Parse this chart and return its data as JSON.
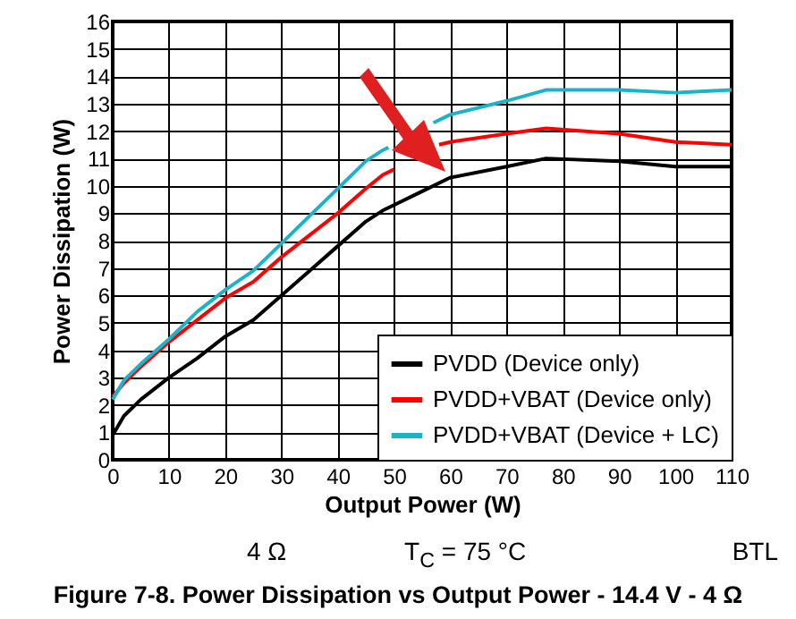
{
  "chart_data": {
    "type": "line",
    "title": "Figure 7-8. Power Dissipation vs Output Power - 14.4 V - 4 Ω",
    "xlabel": "Output Power (W)",
    "ylabel": "Power Dissipation (W)",
    "annotations": [
      "4 Ω",
      "T$_{C}$ = 75 °C",
      "BTL"
    ],
    "x": [
      0,
      2,
      5,
      10,
      15,
      20,
      25,
      30,
      35,
      40,
      45,
      48,
      50,
      55,
      60,
      70,
      77,
      90,
      100,
      110
    ],
    "series": [
      {
        "name": "PVDD (Device only)",
        "color": "#000000",
        "values": [
          0.9,
          1.6,
          2.2,
          3.0,
          3.7,
          4.5,
          5.1,
          6.0,
          6.9,
          7.8,
          8.7,
          9.1,
          9.3,
          9.8,
          10.3,
          10.7,
          11.0,
          10.9,
          10.7,
          10.7
        ]
      },
      {
        "name": "PVDD+VBAT (Device only)",
        "color": "#ff0000",
        "x": [
          0,
          2,
          5,
          10,
          15,
          20,
          25,
          30,
          35,
          40,
          45,
          48,
          50,
          54,
          58,
          60,
          70,
          77,
          90,
          100,
          110
        ],
        "values": [
          2.3,
          2.8,
          3.4,
          4.3,
          5.1,
          5.9,
          6.5,
          7.4,
          8.2,
          9.0,
          9.9,
          10.4,
          10.6,
          null,
          11.5,
          11.6,
          11.9,
          12.1,
          11.9,
          11.6,
          11.5
        ]
      },
      {
        "name": "PVDD+VBAT (Device + LC)",
        "color": "#1ab4c8",
        "x": [
          0,
          2,
          5,
          10,
          15,
          20,
          25,
          30,
          35,
          40,
          45,
          48,
          49,
          52,
          57,
          60,
          70,
          77,
          90,
          100,
          110
        ],
        "values": [
          2.2,
          2.9,
          3.5,
          4.4,
          5.4,
          6.2,
          6.9,
          7.9,
          8.9,
          9.9,
          10.9,
          11.3,
          11.4,
          null,
          12.3,
          12.6,
          13.1,
          13.5,
          13.5,
          13.4,
          13.5
        ]
      }
    ],
    "xlim": [
      0,
      110
    ],
    "xticks": [
      0,
      10,
      20,
      30,
      40,
      50,
      60,
      70,
      80,
      90,
      100,
      110
    ],
    "ylim": [
      0,
      16
    ],
    "yticks": [
      0,
      1,
      2,
      3,
      4,
      5,
      6,
      7,
      8,
      9,
      10,
      11,
      12,
      13,
      14,
      15,
      16
    ],
    "grid": true,
    "legend": "bottom right",
    "line_style": "solid",
    "marker": "none"
  }
}
